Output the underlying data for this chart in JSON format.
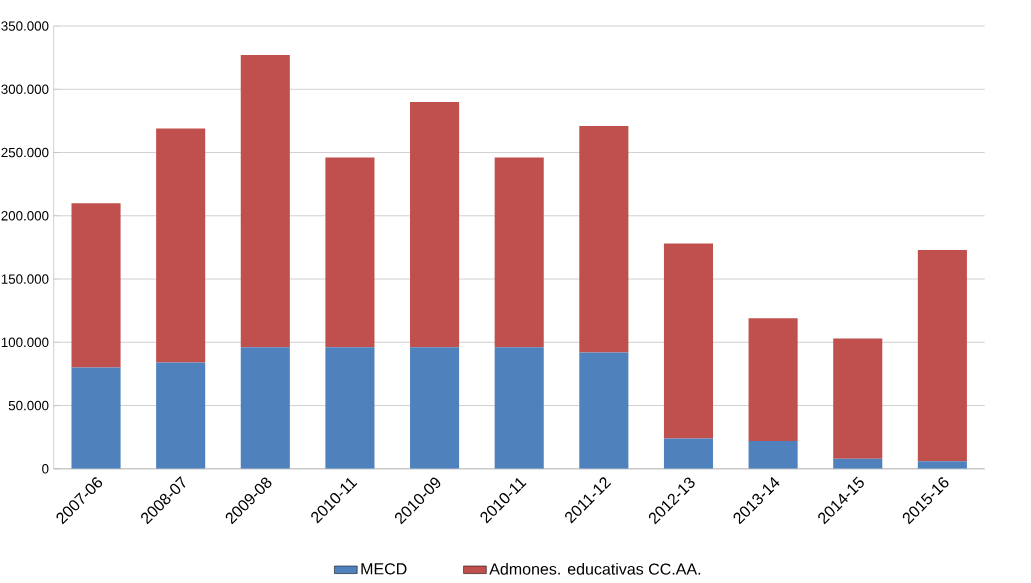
{
  "chart_data": {
    "type": "bar",
    "stacked": true,
    "categories": [
      "2007-06",
      "2008-07",
      "2009-08",
      "2010-11",
      "2010-09",
      "2010-11",
      "2011-12",
      "2012-13",
      "2013-14",
      "2014-15",
      "2015-16"
    ],
    "series": [
      {
        "name": "MECD",
        "color": "#4f81bd",
        "values": [
          80000,
          84000,
          96000,
          96000,
          96000,
          96000,
          92000,
          24000,
          22000,
          8000,
          6000
        ]
      },
      {
        "name": "Admones. educativas CC.AA.",
        "color": "#c0504d",
        "values": [
          130000,
          185000,
          231000,
          150000,
          194000,
          150000,
          179000,
          154000,
          97000,
          95000,
          167000
        ]
      }
    ],
    "ylim": [
      0,
      350000
    ],
    "yticks": [
      {
        "value": 0,
        "label": "0"
      },
      {
        "value": 50000,
        "label": "50.000"
      },
      {
        "value": 100000,
        "label": "100.000"
      },
      {
        "value": 150000,
        "label": "150.000"
      },
      {
        "value": 200000,
        "label": "200.000"
      },
      {
        "value": 250000,
        "label": "250.000"
      },
      {
        "value": 300000,
        "label": "300.000"
      },
      {
        "value": 350000,
        "label": "350.000"
      }
    ],
    "grid": "y",
    "legend": "bottom"
  }
}
